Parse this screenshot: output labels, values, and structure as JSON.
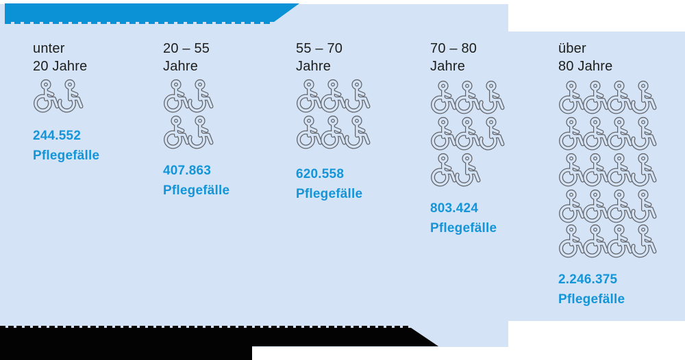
{
  "banner": {
    "title": ""
  },
  "columns": [
    {
      "id": "unter-20",
      "label_line1": "unter",
      "label_line2": "20 Jahre",
      "value": "244.552",
      "unit": "Pflegefälle",
      "icon_rows": [
        2
      ]
    },
    {
      "id": "20-55",
      "label_line1": "20 – 55",
      "label_line2": "Jahre",
      "value": "407.863",
      "unit": "Pflegefälle",
      "icon_rows": [
        2,
        2
      ]
    },
    {
      "id": "55-70",
      "label_line1": "55 – 70",
      "label_line2": "Jahre",
      "value": "620.558",
      "unit": "Pflegefälle",
      "icon_rows": [
        3,
        3
      ]
    },
    {
      "id": "70-80",
      "label_line1": "70 – 80",
      "label_line2": "Jahre",
      "value": "803.424",
      "unit": "Pflegefälle",
      "icon_rows": [
        3,
        3,
        2
      ]
    },
    {
      "id": "ueber-80",
      "label_line1": "über",
      "label_line2": "80 Jahre",
      "value": "2.246.375",
      "unit": "Pflegefälle",
      "icon_rows": [
        4,
        4,
        4,
        4,
        4
      ]
    }
  ],
  "footer": {
    "line1": "",
    "line2": ""
  },
  "colors": {
    "banner_blue": "#0a91d6",
    "panel_light_blue": "#d4e4f6",
    "number_blue": "#1495d8",
    "label_black": "#1d1d1b",
    "icon_outline_gray": "#64656a",
    "footer_black": "#030303"
  },
  "chart_data": {
    "type": "pictogram",
    "title": "",
    "categories": [
      "unter 20 Jahre",
      "20 – 55 Jahre",
      "55 – 70 Jahre",
      "70 – 80 Jahre",
      "über 80 Jahre"
    ],
    "values": [
      244552,
      407863,
      620558,
      803424,
      2246375
    ],
    "value_labels": [
      "244.552",
      "407.863",
      "620.558",
      "803.424",
      "2.246.375"
    ],
    "unit_label": "Pflegefälle",
    "icon": "wheelchair-user",
    "icon_counts": [
      2,
      4,
      6,
      8,
      20
    ],
    "legend_position": "none",
    "grid": false
  }
}
